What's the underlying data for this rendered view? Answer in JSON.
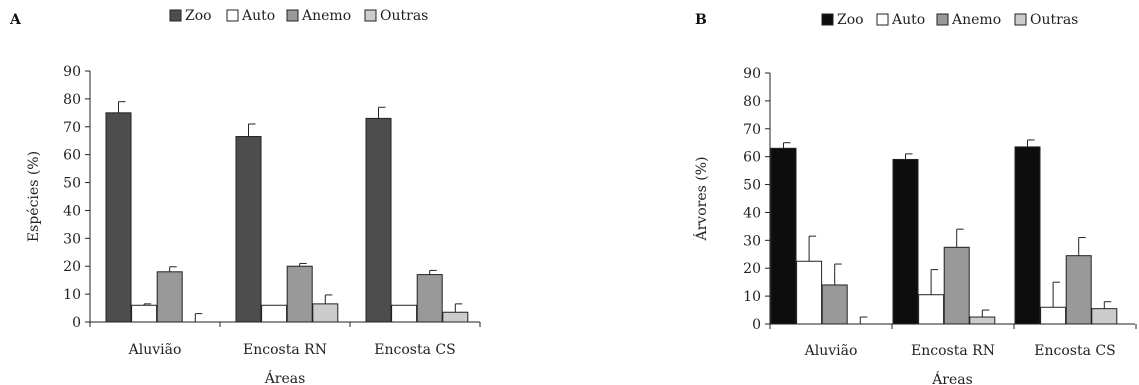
{
  "chart_data": [
    {
      "type": "bar",
      "panel_label": "A",
      "categories": [
        "Aluvião",
        "Encosta RN",
        "Encosta CS"
      ],
      "series": [
        {
          "name": "Zoo",
          "values": [
            75,
            66.5,
            73
          ],
          "errors": [
            4,
            4.5,
            4
          ],
          "color": "#4d4d4d"
        },
        {
          "name": "Auto",
          "values": [
            6,
            6,
            6
          ],
          "errors": [
            0.5,
            0,
            0
          ],
          "color": "#ffffff"
        },
        {
          "name": "Anemo",
          "values": [
            18,
            20,
            17
          ],
          "errors": [
            1.8,
            1,
            1.5
          ],
          "color": "#999999"
        },
        {
          "name": "Outras",
          "values": [
            0,
            6.5,
            3.5
          ],
          "errors": [
            3,
            3.2,
            3
          ],
          "color": "#cccccc"
        }
      ],
      "xlabel": "Áreas",
      "ylabel": "Espécies (%)",
      "ylim": [
        0,
        90
      ],
      "yticks": [
        0,
        10,
        20,
        30,
        40,
        50,
        60,
        70,
        80,
        90
      ],
      "legend_position": "top",
      "grid": false
    },
    {
      "type": "bar",
      "panel_label": "B",
      "categories": [
        "Aluvião",
        "Encosta RN",
        "Encosta CS"
      ],
      "series": [
        {
          "name": "Zoo",
          "values": [
            63,
            59,
            63.5
          ],
          "errors": [
            2,
            2,
            2.5
          ],
          "color": "#0d0d0d"
        },
        {
          "name": "Auto",
          "values": [
            22.5,
            10.5,
            6
          ],
          "errors": [
            9,
            9,
            9
          ],
          "color": "#ffffff"
        },
        {
          "name": "Anemo",
          "values": [
            14,
            27.5,
            24.5
          ],
          "errors": [
            7.5,
            6.5,
            6.5
          ],
          "color": "#999999"
        },
        {
          "name": "Outras",
          "values": [
            0,
            2.5,
            5.5
          ],
          "errors": [
            2.5,
            2.5,
            2.5
          ],
          "color": "#cccccc"
        }
      ],
      "xlabel": "Áreas",
      "ylabel": "Árvores (%)",
      "ylim": [
        0,
        90
      ],
      "yticks": [
        0,
        10,
        20,
        30,
        40,
        50,
        60,
        70,
        80,
        90
      ],
      "legend_position": "top",
      "grid": false
    }
  ]
}
